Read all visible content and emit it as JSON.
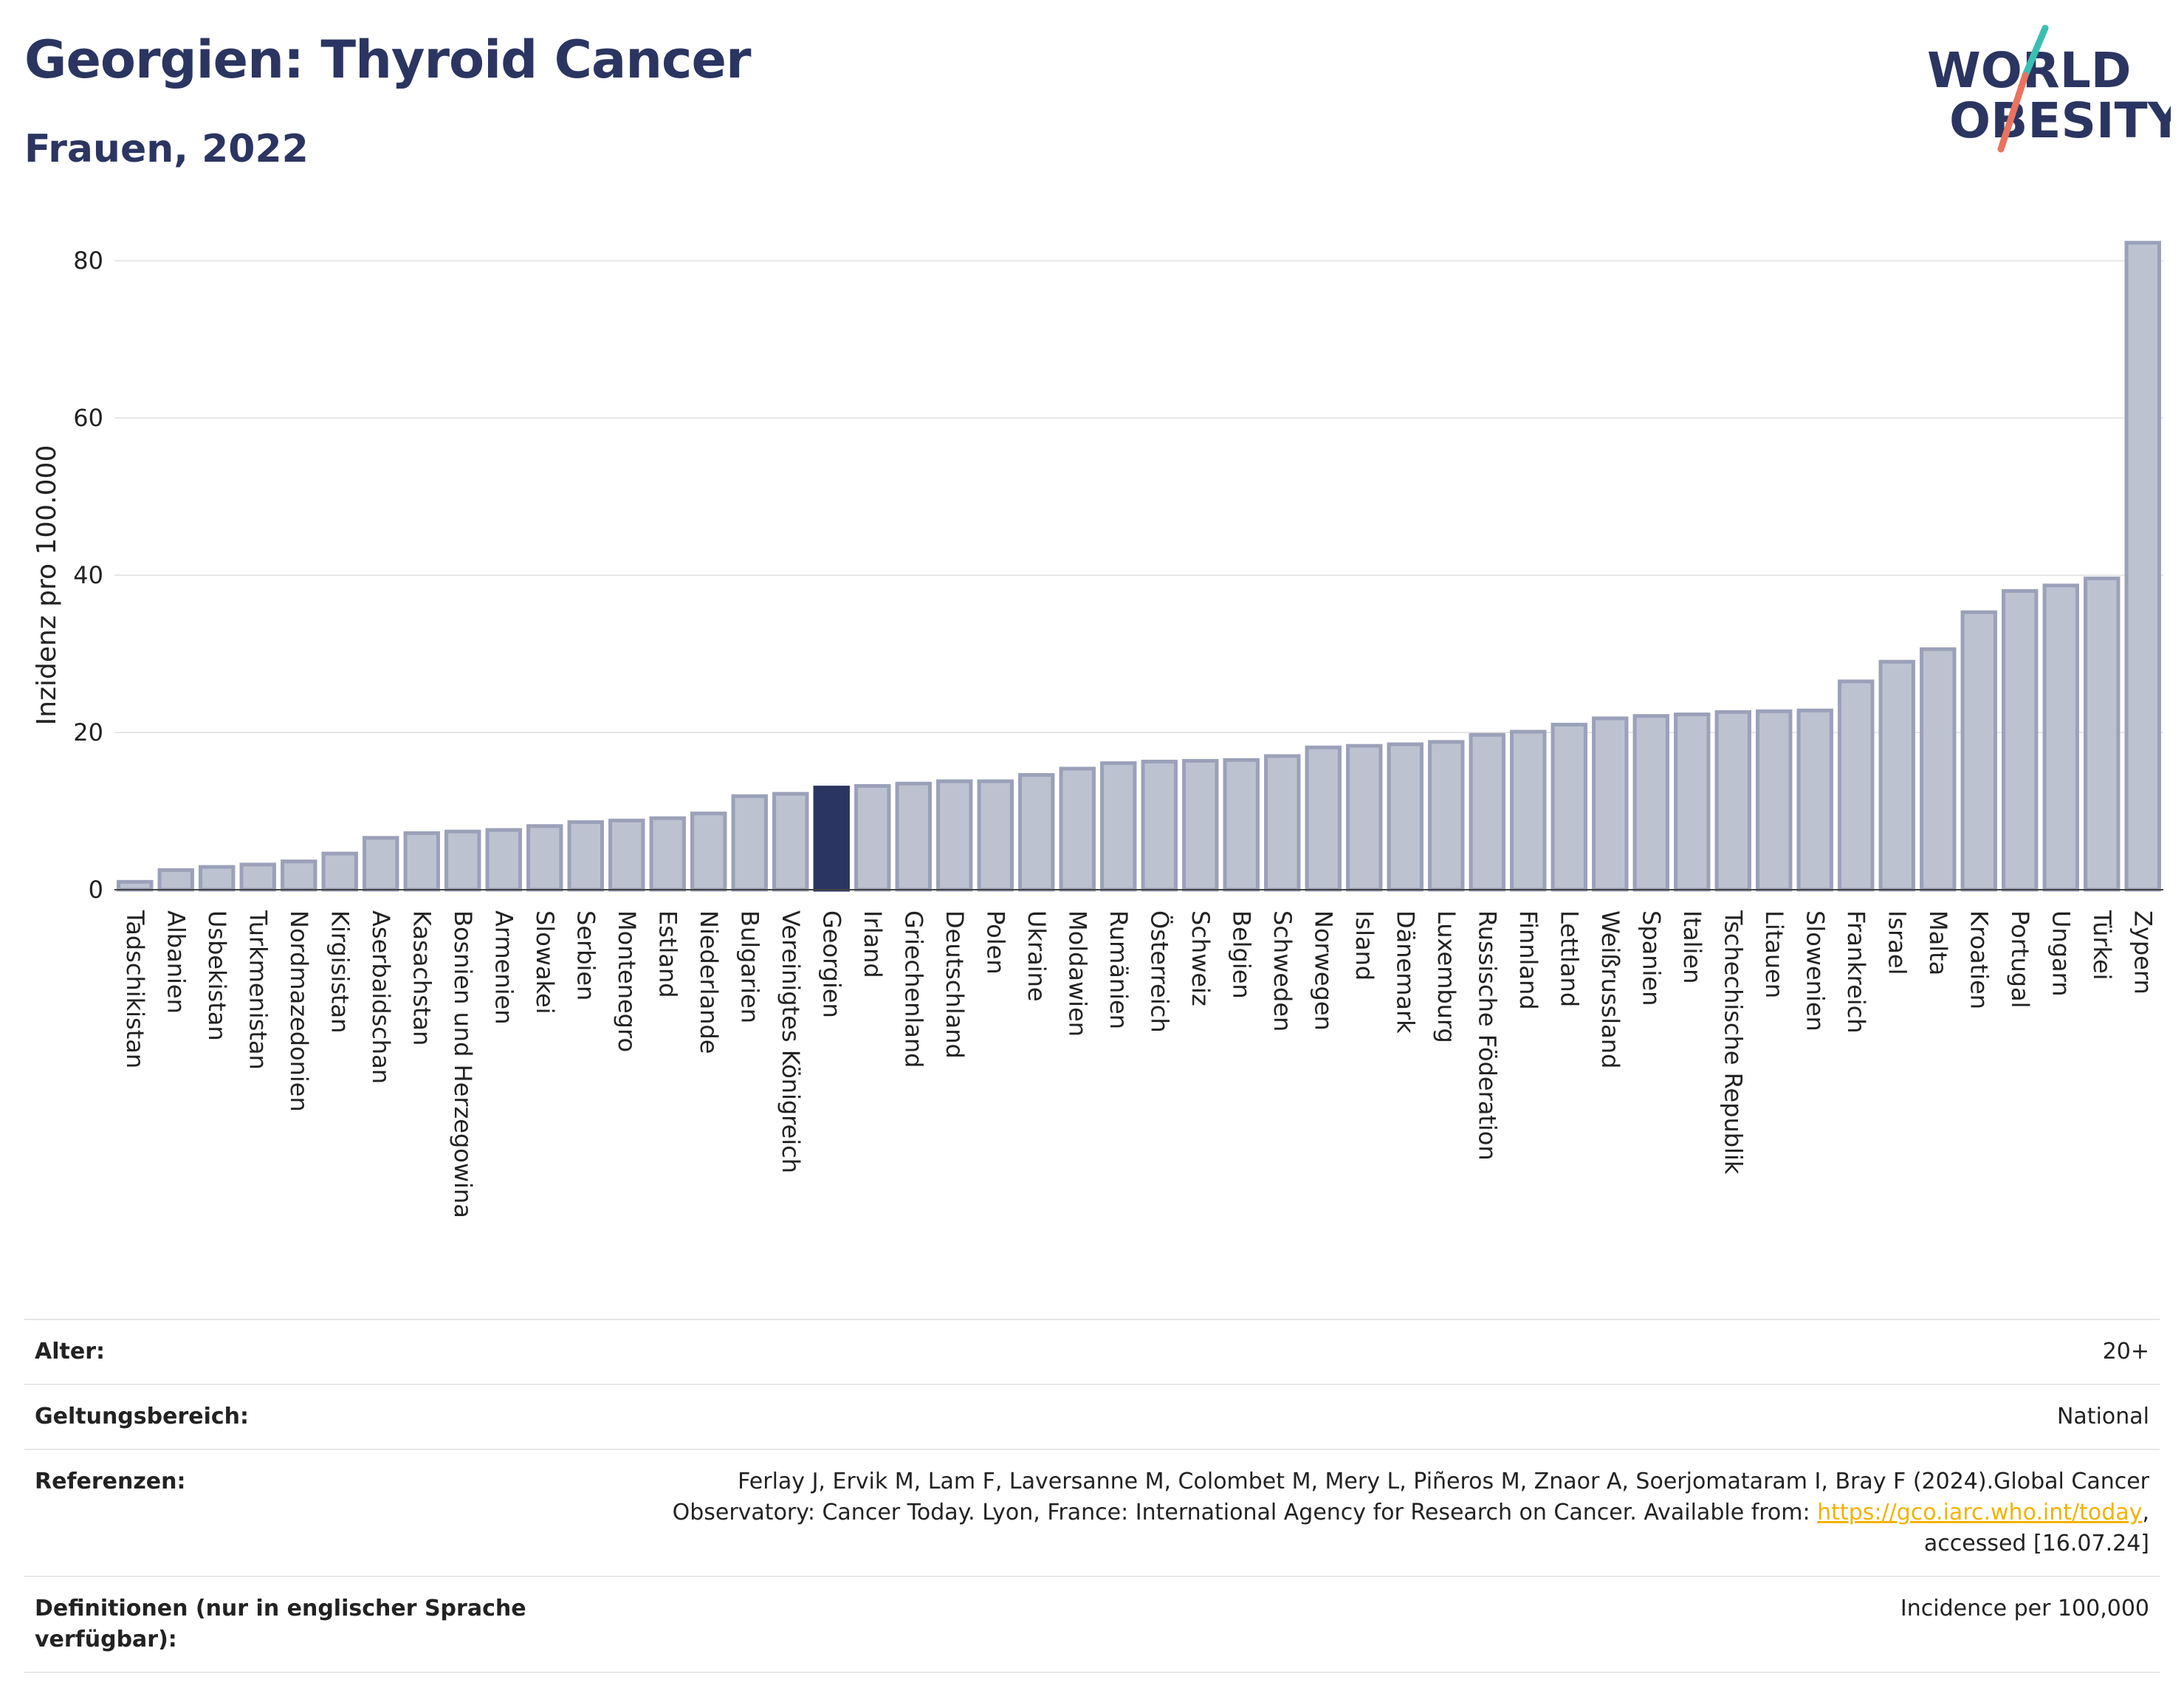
{
  "header": {
    "title": "Georgien: Thyroid Cancer",
    "subtitle": "Frauen, 2022",
    "logo_line1": "WORLD",
    "logo_line2": "OBESITY"
  },
  "colors": {
    "title": "#2b3561",
    "bar_default": "#bdc2d1",
    "bar_default_stroke": "#9aa1b8",
    "bar_highlight": "#2b3561",
    "gridline": "#e6e6e6",
    "logo_teal": "#3bbfb3",
    "logo_coral": "#e8735e",
    "link": "#f2b200"
  },
  "chart_data": {
    "type": "bar",
    "ylabel": "Inzidenz pro 100.000",
    "xlabel": "",
    "ylim": [
      0,
      85
    ],
    "yticks": [
      0,
      20,
      40,
      60,
      80
    ],
    "grid": true,
    "highlight_category": "Georgien",
    "categories": [
      "Tadschikistan",
      "Albanien",
      "Usbekistan",
      "Turkmenistan",
      "Nordmazedonien",
      "Kirgisistan",
      "Aserbaidschan",
      "Kasachstan",
      "Bosnien und Herzegowina",
      "Armenien",
      "Slowakei",
      "Serbien",
      "Montenegro",
      "Estland",
      "Niederlande",
      "Bulgarien",
      "Vereinigtes Königreich",
      "Georgien",
      "Irland",
      "Griechenland",
      "Deutschland",
      "Polen",
      "Ukraine",
      "Moldawien",
      "Rumänien",
      "Österreich",
      "Schweiz",
      "Belgien",
      "Schweden",
      "Norwegen",
      "Island",
      "Dänemark",
      "Luxemburg",
      "Russische Föderation",
      "Finnland",
      "Lettland",
      "Weißrussland",
      "Spanien",
      "Italien",
      "Tschechische Republik",
      "Litauen",
      "Slowenien",
      "Frankreich",
      "Israel",
      "Malta",
      "Kroatien",
      "Portugal",
      "Ungarn",
      "Türkei",
      "Zypern"
    ],
    "values": [
      1.0,
      2.5,
      2.9,
      3.2,
      3.6,
      4.6,
      6.6,
      7.2,
      7.4,
      7.6,
      8.1,
      8.6,
      8.8,
      9.1,
      9.7,
      11.9,
      12.2,
      13.0,
      13.2,
      13.5,
      13.8,
      13.8,
      14.6,
      15.4,
      16.1,
      16.3,
      16.4,
      16.5,
      17.0,
      18.1,
      18.3,
      18.5,
      18.8,
      19.7,
      20.1,
      21.0,
      21.8,
      22.1,
      22.3,
      22.6,
      22.7,
      22.8,
      26.5,
      29.0,
      30.6,
      35.3,
      38.0,
      38.7,
      39.6,
      82.3
    ]
  },
  "meta": {
    "age_label": "Alter:",
    "age_value": "20+",
    "scope_label": "Geltungsbereich:",
    "scope_value": "National",
    "ref_label": "Referenzen:",
    "ref_text_1": "Ferlay J, Ervik M, Lam F, Laversanne M, Colombet M, Mery L, Piñeros M, Znaor A, Soerjomataram I, Bray F (2024).Global Cancer",
    "ref_text_2": "Observatory: Cancer Today. Lyon, France: International Agency for Research on Cancer. Available from: ",
    "ref_link": "https://gco.iarc.who.int/today",
    "ref_text_3": ",",
    "ref_text_4": "accessed [16.07.24]",
    "def_label": "Definitionen (nur in englischer Sprache verfügbar):",
    "def_value": "Incidence per 100,000"
  }
}
